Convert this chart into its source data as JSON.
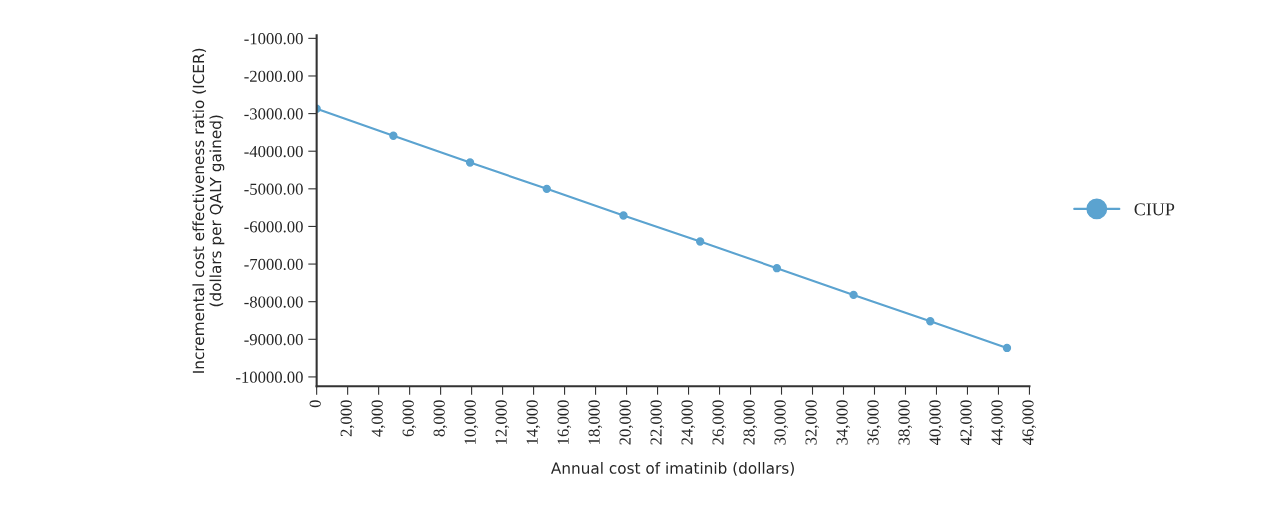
{
  "chart_data": {
    "type": "line",
    "xlabel": "Annual cost of imatinib (dollars)",
    "ylabel": "Incremental cost effectiveness ratio (ICER)\n(dollars per QALY gained)",
    "x": [
      0,
      4950,
      9900,
      14850,
      19800,
      24750,
      29700,
      34650,
      39600,
      44550
    ],
    "series": [
      {
        "name": "CIUP",
        "color": "#5ba3d0",
        "values": [
          -2870,
          -3590,
          -4300,
          -5000,
          -5710,
          -6400,
          -7110,
          -7820,
          -8520,
          -9230
        ]
      }
    ],
    "xlim": [
      0,
      46000
    ],
    "xticks": [
      {
        "value": 0,
        "label": "0"
      },
      {
        "value": 2000,
        "label": "2,000"
      },
      {
        "value": 4000,
        "label": "4,000"
      },
      {
        "value": 6000,
        "label": "6,000"
      },
      {
        "value": 8000,
        "label": "8,000"
      },
      {
        "value": 10000,
        "label": "10,000"
      },
      {
        "value": 12000,
        "label": "12,000"
      },
      {
        "value": 14000,
        "label": "14,000"
      },
      {
        "value": 16000,
        "label": "16,000"
      },
      {
        "value": 18000,
        "label": "18,000"
      },
      {
        "value": 20000,
        "label": "20,000"
      },
      {
        "value": 22000,
        "label": "22,000"
      },
      {
        "value": 24000,
        "label": "24,000"
      },
      {
        "value": 26000,
        "label": "26,000"
      },
      {
        "value": 28000,
        "label": "28,000"
      },
      {
        "value": 30000,
        "label": "30,000"
      },
      {
        "value": 32000,
        "label": "32,000"
      },
      {
        "value": 34000,
        "label": "34,000"
      },
      {
        "value": 36000,
        "label": "36,000"
      },
      {
        "value": 38000,
        "label": "38,000"
      },
      {
        "value": 40000,
        "label": "40,000"
      },
      {
        "value": 42000,
        "label": "42,000"
      },
      {
        "value": 44000,
        "label": "44,000"
      },
      {
        "value": 46000,
        "label": "46,000"
      }
    ],
    "ylim": [
      -10250,
      -920
    ],
    "yticks": [
      {
        "value": -1000,
        "label": "-1000.00"
      },
      {
        "value": -2000,
        "label": "-2000.00"
      },
      {
        "value": -3000,
        "label": "-3000.00"
      },
      {
        "value": -4000,
        "label": "-4000.00"
      },
      {
        "value": -5000,
        "label": "-5000.00"
      },
      {
        "value": -6000,
        "label": "-6000.00"
      },
      {
        "value": -7000,
        "label": "-7000.00"
      },
      {
        "value": -8000,
        "label": "-8000.00"
      },
      {
        "value": -9000,
        "label": "-9000.00"
      },
      {
        "value": -10000,
        "label": "-10000.00"
      }
    ],
    "marker": "circle",
    "line_style": "solid",
    "legend": "right",
    "grid": false
  }
}
